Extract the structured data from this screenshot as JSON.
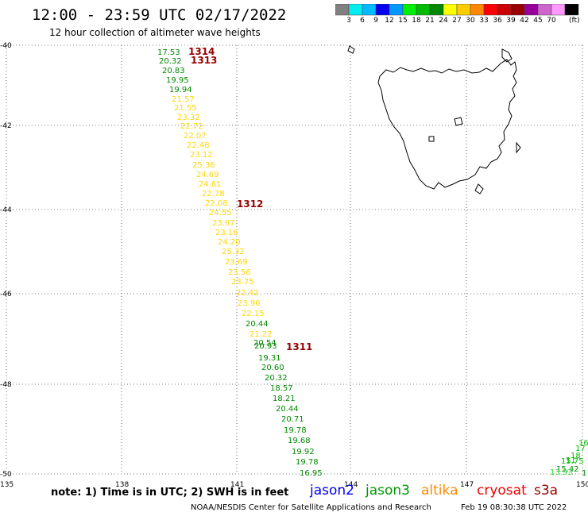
{
  "header": {
    "title": "12:00 - 23:59 UTC 02/17/2022",
    "subtitle": "12 hour collection of altimeter wave heights"
  },
  "legend": {
    "colors": [
      "#808080",
      "#00eeee",
      "#00bbff",
      "#0000ee",
      "#0099ff",
      "#00ee00",
      "#00bb00",
      "#008800",
      "#ffff00",
      "#ffcc00",
      "#ff8800",
      "#ff0000",
      "#cc0000",
      "#990000",
      "#990099",
      "#cc66cc",
      "#ff99ff",
      "#000000"
    ],
    "labels": [
      "3",
      "6",
      "9",
      "12",
      "15",
      "18",
      "21",
      "24",
      "27",
      "30",
      "33",
      "36",
      "39",
      "42",
      "45",
      "70"
    ],
    "unit": "(ft)"
  },
  "axes": {
    "lat_labels": [
      "-40",
      "-42",
      "-44",
      "-46",
      "-48",
      "-50"
    ],
    "lon_labels": [
      "135",
      "138",
      "141",
      "144",
      "147",
      "150"
    ]
  },
  "chart_data": {
    "type": "map",
    "track_passes": [
      {
        "pass": "1314"
      },
      {
        "pass": "1313"
      },
      {
        "pass": "1312"
      },
      {
        "pass": "1311"
      }
    ],
    "swh_main_track": [
      {
        "value": "17.53",
        "color": "#008800"
      },
      {
        "value": "20.32",
        "color": "#008800"
      },
      {
        "value": "20.83",
        "color": "#008800"
      },
      {
        "value": "19.95",
        "color": "#008800"
      },
      {
        "value": "19.94",
        "color": "#008800"
      },
      {
        "value": "21.57",
        "color": "#ffd700"
      },
      {
        "value": "21.55",
        "color": "#ffd700"
      },
      {
        "value": "23.32",
        "color": "#ffd700"
      },
      {
        "value": "22.72",
        "color": "#ffd700"
      },
      {
        "value": "22.07",
        "color": "#ffd700"
      },
      {
        "value": "22.48",
        "color": "#ffd700"
      },
      {
        "value": "23.12",
        "color": "#ffd700"
      },
      {
        "value": "25.36",
        "color": "#ffd700"
      },
      {
        "value": "24.69",
        "color": "#ffd700"
      },
      {
        "value": "24.61",
        "color": "#ffd700"
      },
      {
        "value": "22.78",
        "color": "#ffd700"
      },
      {
        "value": "22.08",
        "color": "#ffd700"
      },
      {
        "value": "24.55",
        "color": "#ffd700"
      },
      {
        "value": "23.97",
        "color": "#ffd700"
      },
      {
        "value": "23.16",
        "color": "#ffd700"
      },
      {
        "value": "24.20",
        "color": "#ffd700"
      },
      {
        "value": "25.32",
        "color": "#ffd700"
      },
      {
        "value": "23.69",
        "color": "#ffd700"
      },
      {
        "value": "23.56",
        "color": "#ffd700"
      },
      {
        "value": "23.75",
        "color": "#ffd700"
      },
      {
        "value": "22.42",
        "color": "#ffd700"
      },
      {
        "value": "23.96",
        "color": "#ffd700"
      },
      {
        "value": "22.15",
        "color": "#ffd700"
      },
      {
        "value": "20.44",
        "color": "#008800"
      },
      {
        "value": "21.22",
        "color": "#ffd700"
      },
      {
        "value": "20.54",
        "color": "#008800"
      },
      {
        "value": "20.93",
        "color": "#008800"
      },
      {
        "value": "19.31",
        "color": "#008800"
      },
      {
        "value": "20.60",
        "color": "#008800"
      },
      {
        "value": "20.32",
        "color": "#008800"
      },
      {
        "value": "18.57",
        "color": "#008800"
      },
      {
        "value": "18.21",
        "color": "#008800"
      },
      {
        "value": "20.44",
        "color": "#008800"
      },
      {
        "value": "20.71",
        "color": "#008800"
      },
      {
        "value": "19.78",
        "color": "#008800"
      },
      {
        "value": "19.68",
        "color": "#008800"
      },
      {
        "value": "19.92",
        "color": "#008800"
      },
      {
        "value": "19.78",
        "color": "#008800"
      },
      {
        "value": "16.95",
        "color": "#008800"
      }
    ],
    "swh_corner_track": [
      {
        "value": "16",
        "color": "#00bb00"
      },
      {
        "value": "17",
        "color": "#00bb00"
      },
      {
        "value": "18",
        "color": "#00bb00"
      },
      {
        "value": "11",
        "color": "#00bb00"
      },
      {
        "value": "15.75",
        "color": "#00bb00"
      },
      {
        "value": "15.42",
        "color": "#008800"
      },
      {
        "value": "1",
        "color": "#008800"
      },
      {
        "value": "13.93",
        "color": "#33dd33"
      }
    ]
  },
  "footer": {
    "note": "note: 1) Time is in UTC; 2) SWH is in feet",
    "satellites": [
      {
        "name": "jason2",
        "color": "#0000ee"
      },
      {
        "name": "jason3",
        "color": "#009900"
      },
      {
        "name": "altika",
        "color": "#ff8800"
      },
      {
        "name": "cryosat",
        "color": "#ee0000"
      },
      {
        "name": "s3a",
        "color": "#990000"
      }
    ],
    "credit": "NOAA/NESDIS Center for Satellite Applications and Research",
    "generated": "Feb 19 08:30:38 UTC 2022"
  }
}
